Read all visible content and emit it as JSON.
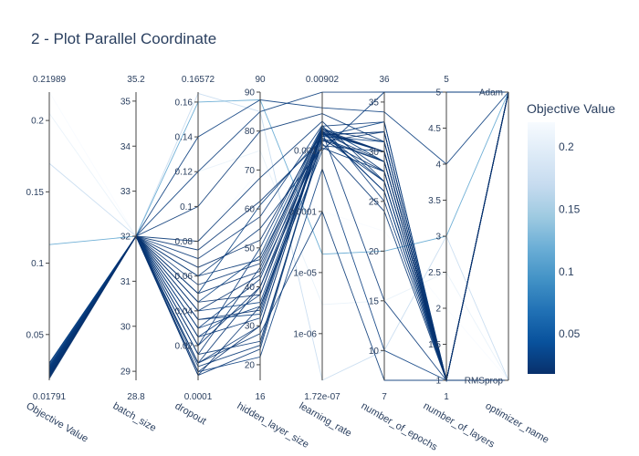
{
  "title": "2 - Plot Parallel Coordinate",
  "chart_data": {
    "type": "parallel_coordinates",
    "colorbar": {
      "title": "Objective Value",
      "range": [
        0.01791,
        0.21989
      ],
      "ticks": [
        0.05,
        0.1,
        0.15,
        0.2
      ],
      "tick_labels": [
        "0.05",
        "0.1",
        "0.15",
        "0.2"
      ],
      "colorscale": [
        "#08306b",
        "#08519c",
        "#2171b5",
        "#4292c6",
        "#6baed6",
        "#9ecae1",
        "#c6dbef",
        "#deebf7",
        "#f7fbff"
      ]
    },
    "dimensions": [
      {
        "label": "Objective Value",
        "scale": "linear",
        "min": 0.01791,
        "max": 0.21989,
        "min_label": "0.01791",
        "max_label": "0.21989",
        "ticks": [
          0.05,
          0.1,
          0.15,
          0.2
        ],
        "tick_labels": [
          "0.05",
          "0.1",
          "0.15",
          "0.2"
        ]
      },
      {
        "label": "batch_size",
        "scale": "linear",
        "min": 28.8,
        "max": 35.2,
        "min_label": "28.8",
        "max_label": "35.2",
        "ticks": [
          29,
          30,
          31,
          32,
          33,
          34,
          35
        ],
        "tick_labels": [
          "29",
          "30",
          "31",
          "32",
          "33",
          "34",
          "35"
        ]
      },
      {
        "label": "dropout",
        "scale": "linear",
        "min": 0.0001,
        "max": 0.16572,
        "min_label": "0.0001",
        "max_label": "0.16572",
        "ticks": [
          0.02,
          0.04,
          0.06,
          0.08,
          0.1,
          0.12,
          0.14,
          0.16
        ],
        "tick_labels": [
          "0.02",
          "0.04",
          "0.06",
          "0.08",
          "0.1",
          "0.12",
          "0.14",
          "0.16"
        ]
      },
      {
        "label": "hidden_layer_size",
        "scale": "linear",
        "min": 16,
        "max": 90,
        "min_label": "16",
        "max_label": "90",
        "ticks": [
          20,
          30,
          40,
          50,
          60,
          70,
          80,
          90
        ],
        "tick_labels": [
          "20",
          "30",
          "40",
          "50",
          "60",
          "70",
          "80",
          "90"
        ]
      },
      {
        "label": "learning_rate",
        "scale": "log",
        "min": 1.72e-07,
        "max": 0.00902,
        "min_label": "1.72e-07",
        "max_label": "0.00902",
        "ticks": [
          1e-06,
          1e-05,
          0.0001,
          0.001
        ],
        "tick_labels": [
          "1e-06",
          "1e-05",
          "0.0001",
          "0.001"
        ]
      },
      {
        "label": "number_of_epochs",
        "scale": "linear",
        "min": 7,
        "max": 36,
        "min_label": "7",
        "max_label": "36",
        "ticks": [
          10,
          15,
          20,
          25,
          30,
          35
        ],
        "tick_labels": [
          "10",
          "15",
          "20",
          "25",
          "30",
          "35"
        ]
      },
      {
        "label": "number_of_layers",
        "scale": "linear",
        "min": 1,
        "max": 5,
        "min_label": "1",
        "max_label": "5",
        "ticks": [
          1,
          1.5,
          2,
          2.5,
          3,
          3.5,
          4,
          4.5,
          5
        ],
        "tick_labels": [
          "1",
          "1.5",
          "2",
          "2.5",
          "3",
          "3.5",
          "4",
          "4.5",
          "5"
        ]
      },
      {
        "label": "optimizer_name",
        "scale": "categorical",
        "categories": [
          "RMSprop",
          "Adam"
        ],
        "ticks": [
          0,
          1
        ],
        "tick_labels": [
          "RMSprop",
          "Adam"
        ]
      }
    ],
    "trials": [
      [
        0.21989,
        32,
        0.08,
        70,
        0.0001,
        22,
        2,
        0
      ],
      [
        0.205,
        32,
        0.12,
        75,
        3e-06,
        15,
        2.5,
        0
      ],
      [
        0.113,
        32,
        0.16,
        88,
        2e-05,
        20,
        3,
        1
      ],
      [
        0.17,
        32,
        0.165,
        85,
        1.72e-07,
        10,
        3,
        0
      ],
      [
        0.02,
        32,
        0.005,
        30,
        0.002,
        30,
        1,
        1
      ],
      [
        0.021,
        32,
        0.003,
        35,
        0.0015,
        28,
        1,
        1
      ],
      [
        0.022,
        32,
        0.01,
        40,
        0.0018,
        32,
        1,
        0
      ],
      [
        0.023,
        32,
        0.015,
        45,
        0.0022,
        31,
        1,
        1
      ],
      [
        0.024,
        32,
        0.008,
        25,
        0.0016,
        29,
        1,
        1
      ],
      [
        0.025,
        32,
        0.02,
        50,
        0.0025,
        33,
        1,
        1
      ],
      [
        0.026,
        32,
        0.025,
        38,
        0.002,
        27,
        1,
        1
      ],
      [
        0.027,
        32,
        0.03,
        42,
        0.0019,
        30,
        1,
        0
      ],
      [
        0.028,
        32,
        0.035,
        33,
        0.0021,
        26,
        1,
        1
      ],
      [
        0.029,
        32,
        0.04,
        36,
        0.0017,
        31,
        1,
        1
      ],
      [
        0.03,
        32,
        0.045,
        48,
        0.0024,
        29,
        1,
        1
      ],
      [
        0.021,
        32,
        0.05,
        44,
        0.002,
        30,
        1,
        1
      ],
      [
        0.022,
        32,
        0.055,
        46,
        0.0023,
        28,
        1,
        1
      ],
      [
        0.023,
        32,
        0.06,
        47,
        0.0018,
        32,
        1,
        1
      ],
      [
        0.02,
        32,
        0.065,
        52,
        0.0021,
        30,
        1,
        1
      ],
      [
        0.025,
        32,
        0.07,
        58,
        0.0026,
        25,
        1,
        1
      ],
      [
        0.022,
        32,
        0.075,
        62,
        0.0015,
        29,
        1,
        0
      ],
      [
        0.024,
        32,
        0.08,
        68,
        0.003,
        27,
        1,
        1
      ],
      [
        0.023,
        32,
        0.1,
        80,
        0.004,
        31,
        1,
        1
      ],
      [
        0.026,
        32,
        0.12,
        85,
        0.009,
        36,
        5,
        1
      ],
      [
        0.027,
        32,
        0.14,
        88,
        0.005,
        34,
        4,
        1
      ],
      [
        0.025,
        32,
        0.01,
        30,
        0.002,
        15,
        1,
        1
      ],
      [
        0.028,
        32,
        0.005,
        22,
        0.0005,
        10,
        1,
        1
      ],
      [
        0.022,
        32,
        0.02,
        40,
        0.0012,
        30,
        1,
        1
      ],
      [
        0.024,
        32,
        0.01,
        28,
        0.0001,
        7,
        1,
        0
      ],
      [
        0.026,
        32,
        0.03,
        35,
        0.001,
        36,
        5,
        1
      ],
      [
        0.023,
        32,
        0.015,
        26,
        0.0013,
        24,
        1,
        1
      ],
      [
        0.025,
        32,
        0.025,
        32,
        0.002,
        26,
        1,
        1
      ],
      [
        0.021,
        32,
        0.04,
        43,
        0.0014,
        32,
        1,
        1
      ],
      [
        0.024,
        32,
        0.06,
        55,
        0.0011,
        28,
        1,
        1
      ],
      [
        0.019,
        32,
        0.045,
        38,
        0.0022,
        30,
        1,
        1
      ],
      [
        0.02,
        32,
        0.035,
        34,
        0.0019,
        29,
        1,
        1
      ],
      [
        0.023,
        32,
        0.003,
        24,
        0.0016,
        27,
        1,
        1
      ],
      [
        0.03,
        32,
        0.05,
        61,
        0.0017,
        33,
        1,
        0
      ]
    ]
  }
}
